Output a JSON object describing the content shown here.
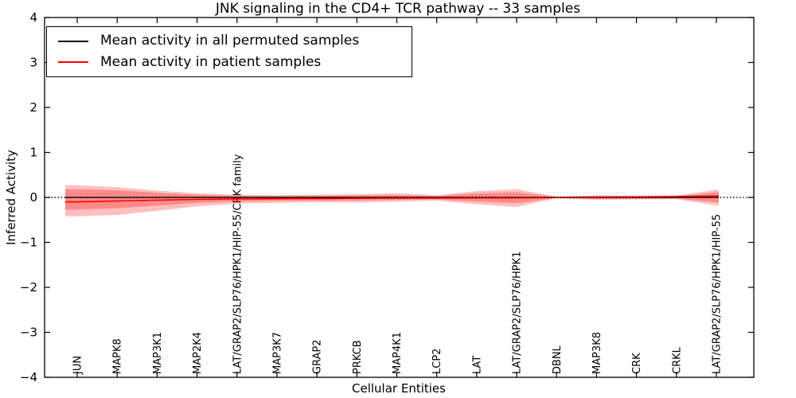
{
  "chart_data": {
    "type": "line",
    "title": "JNK signaling in the CD4+ TCR pathway -- 33 samples",
    "xlabel": "Cellular Entities",
    "ylabel": "Inferred Activity",
    "ylim": [
      -4,
      4
    ],
    "yticks": [
      -4,
      -3,
      -2,
      -1,
      0,
      1,
      2,
      3,
      4
    ],
    "ytick_labels": [
      "−4",
      "−3",
      "−2",
      "−1",
      "0",
      "1",
      "2",
      "3",
      "4"
    ],
    "grid": false,
    "legend_position": "upper left",
    "categories": [
      "JUN",
      "MAPK8",
      "MAP3K1",
      "MAP2K4",
      "LAT/GRAP2/SLP76/HPK1/HIP-55/CRK family",
      "MAP3K7",
      "GRAP2",
      "PRKCB",
      "MAP4K1",
      "LCP2",
      "LAT",
      "LAT/GRAP2/SLP76/HPK1",
      "DBNL",
      "MAP3K8",
      "CRK",
      "CRKL",
      "LAT/GRAP2/SLP76/HPK1/HIP-55"
    ],
    "series": [
      {
        "name": "Mean activity in all permuted samples",
        "color": "#000000",
        "style": "solid",
        "values": [
          0,
          0,
          0,
          0,
          0,
          0,
          0,
          0,
          0,
          0,
          0,
          0,
          0,
          0,
          0,
          0,
          0
        ]
      },
      {
        "name": "Mean activity in patient samples",
        "color": "#ff0000",
        "style": "solid",
        "values": [
          -0.1,
          -0.08,
          -0.06,
          -0.045,
          -0.035,
          -0.03,
          -0.025,
          -0.02,
          -0.015,
          -0.015,
          -0.01,
          -0.01,
          0.0,
          0.005,
          0.01,
          0.02,
          0.03
        ]
      }
    ],
    "zero_reference_line": {
      "value": 0,
      "color": "#000000",
      "style": "dotted"
    },
    "bands": [
      {
        "name": "patient-activity-outer-band",
        "fill": "#ff0000",
        "opacity": 0.25,
        "upper": [
          0.27,
          0.23,
          0.15,
          0.09,
          0.055,
          0.05,
          0.06,
          0.07,
          0.09,
          0.05,
          0.14,
          0.18,
          0.02,
          0.045,
          0.04,
          0.04,
          0.17
        ],
        "lower": [
          -0.42,
          -0.39,
          -0.3,
          -0.2,
          -0.14,
          -0.12,
          -0.11,
          -0.11,
          -0.09,
          -0.07,
          -0.15,
          -0.21,
          -0.02,
          -0.055,
          -0.045,
          -0.04,
          -0.18
        ]
      },
      {
        "name": "patient-activity-inner-band",
        "fill": "#ff0000",
        "opacity": 0.28,
        "upper": [
          0.18,
          0.16,
          0.1,
          0.06,
          0.035,
          0.03,
          0.04,
          0.045,
          0.055,
          0.03,
          0.09,
          0.11,
          0.01,
          0.03,
          0.025,
          0.025,
          0.11
        ],
        "lower": [
          -0.27,
          -0.24,
          -0.18,
          -0.12,
          -0.09,
          -0.075,
          -0.07,
          -0.07,
          -0.055,
          -0.045,
          -0.09,
          -0.13,
          -0.01,
          -0.035,
          -0.03,
          -0.025,
          -0.11
        ]
      }
    ]
  }
}
